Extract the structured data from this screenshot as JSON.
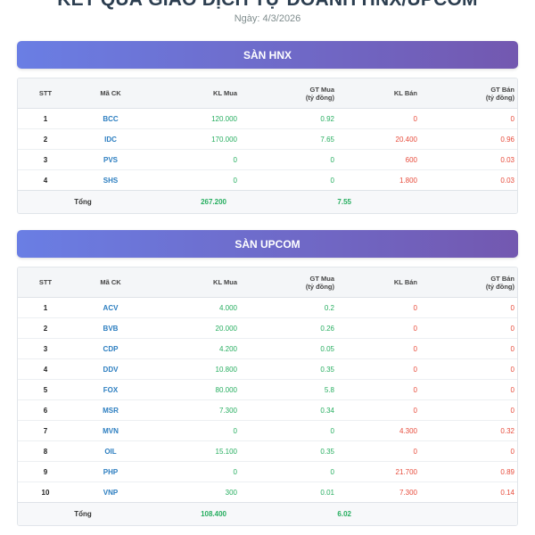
{
  "page": {
    "title": "KẾT QUẢ GIAO DỊCH TỰ DOANH HNX/UPCOM",
    "date": "Ngày: 4/3/2026"
  },
  "columns": {
    "stt": "STT",
    "code": "Mã CK",
    "kl_mua": "KL Mua",
    "gt_mua_1": "GT Mua",
    "gt_mua_2": "(tỷ đồng)",
    "kl_ban": "KL Bán",
    "gt_ban_1": "GT Bán",
    "gt_ban_2": "(tỷ đồng)"
  },
  "hnx": {
    "title": "SÀN HNX",
    "rows": [
      {
        "stt": "1",
        "code": "BCC",
        "kl_mua": "120.000",
        "gt_mua": "0.92",
        "kl_ban": "0",
        "gt_ban": "0"
      },
      {
        "stt": "2",
        "code": "IDC",
        "kl_mua": "170.000",
        "gt_mua": "7.65",
        "kl_ban": "20.400",
        "gt_ban": "0.96"
      },
      {
        "stt": "3",
        "code": "PVS",
        "kl_mua": "0",
        "gt_mua": "0",
        "kl_ban": "600",
        "gt_ban": "0.03"
      },
      {
        "stt": "4",
        "code": "SHS",
        "kl_mua": "0",
        "gt_mua": "0",
        "kl_ban": "1.800",
        "gt_ban": "0.03"
      }
    ],
    "total": {
      "label": "Tổng",
      "kl_mua": "267.200",
      "gt_mua": "7.55"
    }
  },
  "upcom": {
    "title": "SÀN UPCOM",
    "rows": [
      {
        "stt": "1",
        "code": "ACV",
        "kl_mua": "4.000",
        "gt_mua": "0.2",
        "kl_ban": "0",
        "gt_ban": "0"
      },
      {
        "stt": "2",
        "code": "BVB",
        "kl_mua": "20.000",
        "gt_mua": "0.26",
        "kl_ban": "0",
        "gt_ban": "0"
      },
      {
        "stt": "3",
        "code": "CDP",
        "kl_mua": "4.200",
        "gt_mua": "0.05",
        "kl_ban": "0",
        "gt_ban": "0"
      },
      {
        "stt": "4",
        "code": "DDV",
        "kl_mua": "10.800",
        "gt_mua": "0.35",
        "kl_ban": "0",
        "gt_ban": "0"
      },
      {
        "stt": "5",
        "code": "FOX",
        "kl_mua": "80.000",
        "gt_mua": "5.8",
        "kl_ban": "0",
        "gt_ban": "0"
      },
      {
        "stt": "6",
        "code": "MSR",
        "kl_mua": "7.300",
        "gt_mua": "0.34",
        "kl_ban": "0",
        "gt_ban": "0"
      },
      {
        "stt": "7",
        "code": "MVN",
        "kl_mua": "0",
        "gt_mua": "0",
        "kl_ban": "4.300",
        "gt_ban": "0.32"
      },
      {
        "stt": "8",
        "code": "OIL",
        "kl_mua": "15.100",
        "gt_mua": "0.35",
        "kl_ban": "0",
        "gt_ban": "0"
      },
      {
        "stt": "9",
        "code": "PHP",
        "kl_mua": "0",
        "gt_mua": "0",
        "kl_ban": "21.700",
        "gt_ban": "0.89"
      },
      {
        "stt": "10",
        "code": "VNP",
        "kl_mua": "300",
        "gt_mua": "0.01",
        "kl_ban": "7.300",
        "gt_ban": "0.14"
      }
    ],
    "total": {
      "label": "Tổng",
      "kl_mua": "108.400",
      "gt_mua": "6.02"
    }
  },
  "colors": {
    "header_gradient_start": "#6a7ee4",
    "header_gradient_end": "#7358b0",
    "buy": "#27ae60",
    "sell": "#e74c3c",
    "code": "#2c7ec0"
  }
}
